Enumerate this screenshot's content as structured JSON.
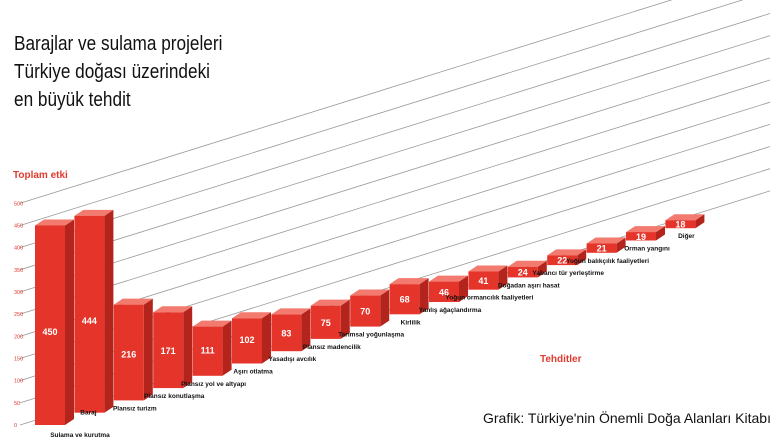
{
  "title_lines": [
    "Barajlar ve sulama projeleri",
    "Türkiye doğası üzerindeki",
    "en büyük tehdit"
  ],
  "source": "Grafik: Türkiye'nin Önemli Doğa Alanları Kitabı",
  "colors": {
    "bar_front": "#e5352b",
    "bar_top": "#f27a6e",
    "bar_side": "#b3241c",
    "accent_text": "#e03a2f",
    "grid": "#999999"
  },
  "chart_data": {
    "type": "bar",
    "title": "",
    "ylabel": "Toplam etki",
    "xlabel": "Tehditler",
    "ylim": [
      0,
      500
    ],
    "yticks": [
      0,
      50,
      100,
      150,
      200,
      250,
      300,
      350,
      400,
      450,
      500
    ],
    "categories": [
      "Sulama ve kurutma",
      "Baraj",
      "Plansız turizm",
      "Plansız konutlaşma",
      "Plansız yol ve altyapı",
      "Aşırı otlatma",
      "Yasadışı avcılık",
      "Plansız madencilik",
      "Tarımsal yoğunlaşma",
      "Kirlilik",
      "Yanlış ağaçlandırma",
      "Yoğun ormancılık faaliyetleri",
      "Doğadan aşırı hasat",
      "Yabancı tür yerleştirme",
      "Yoğun balıkçılık faaliyetleri",
      "Orman yangını",
      "Diğer"
    ],
    "values": [
      450,
      444,
      216,
      171,
      111,
      102,
      83,
      75,
      70,
      68,
      46,
      41,
      24,
      22,
      21,
      19,
      18
    ],
    "grid": true
  }
}
